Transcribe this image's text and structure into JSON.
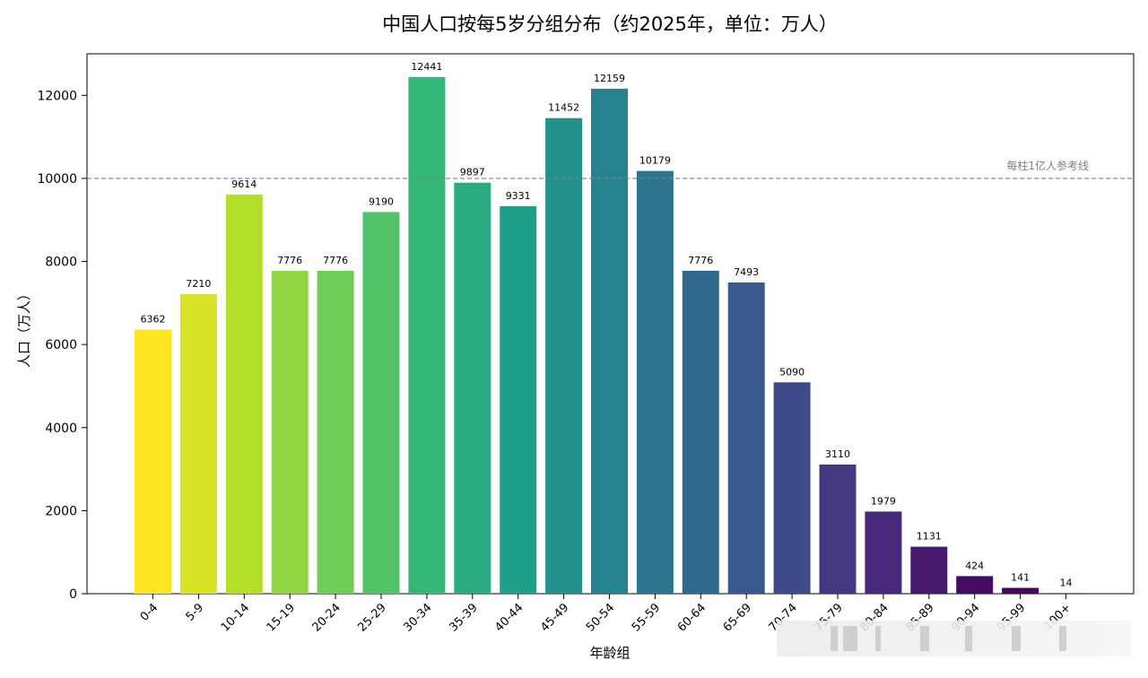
{
  "chart_data": {
    "type": "bar",
    "title": "中国人口按每5岁分组分布（约2025年，单位：万人）",
    "xlabel": "年龄组",
    "ylabel": "人口（万人）",
    "categories": [
      "0-4",
      "5-9",
      "10-14",
      "15-19",
      "20-24",
      "25-29",
      "30-34",
      "35-39",
      "40-44",
      "45-49",
      "50-54",
      "55-59",
      "60-64",
      "65-69",
      "70-74",
      "75-79",
      "80-84",
      "85-89",
      "90-94",
      "95-99",
      "100+"
    ],
    "values": [
      6362,
      7210,
      9614,
      7776,
      7776,
      9190,
      12441,
      9897,
      9331,
      11452,
      12159,
      10179,
      7776,
      7493,
      5090,
      3110,
      1979,
      1131,
      424,
      141,
      14
    ],
    "ylim": [
      0,
      13000
    ],
    "yticks": [
      0,
      2000,
      4000,
      6000,
      8000,
      10000,
      12000
    ],
    "reference_line": {
      "value": 10000,
      "label": "每柱1亿人参考线",
      "style": "dashed",
      "color": "#808080"
    },
    "colormap": "viridis (reversed: yellow → purple)",
    "grid": false,
    "legend": "none"
  }
}
